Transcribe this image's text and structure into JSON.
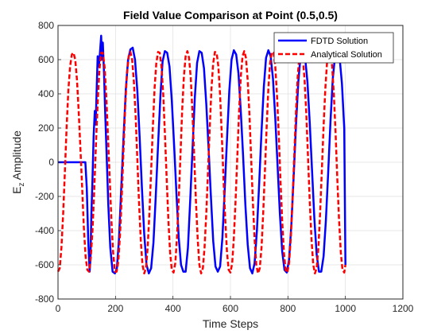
{
  "chart_data": {
    "type": "line",
    "title": "Field Value Comparison at Point (0.5,0.5)",
    "xlabel": "Time Steps",
    "ylabel_main": "E",
    "ylabel_sub": "z",
    "ylabel_rest": " Amplitude",
    "xlim": [
      0,
      1200
    ],
    "ylim": [
      -800,
      800
    ],
    "xticks": [
      "0",
      "200",
      "400",
      "600",
      "800",
      "1000",
      "1200"
    ],
    "yticks": [
      "-800",
      "-600",
      "-400",
      "-200",
      "0",
      "200",
      "400",
      "600",
      "800"
    ],
    "grid": true,
    "legend_position": "top-right",
    "series": [
      {
        "name": "FDTD Solution",
        "color": "#0000ff",
        "style": "solid",
        "points": [
          [
            0,
            0
          ],
          [
            95,
            0
          ],
          [
            100,
            -150
          ],
          [
            105,
            -450
          ],
          [
            110,
            -640
          ],
          [
            113,
            -560
          ],
          [
            116,
            -300
          ],
          [
            120,
            -100
          ],
          [
            124,
            150
          ],
          [
            128,
            300
          ],
          [
            131,
            220
          ],
          [
            134,
            400
          ],
          [
            138,
            620
          ],
          [
            142,
            560
          ],
          [
            146,
            640
          ],
          [
            150,
            740
          ],
          [
            153,
            600
          ],
          [
            156,
            700
          ],
          [
            160,
            520
          ],
          [
            164,
            300
          ],
          [
            170,
            0
          ],
          [
            175,
            -250
          ],
          [
            182,
            -500
          ],
          [
            190,
            -640
          ],
          [
            198,
            -650
          ],
          [
            205,
            -620
          ],
          [
            212,
            -450
          ],
          [
            220,
            -150
          ],
          [
            228,
            150
          ],
          [
            236,
            430
          ],
          [
            244,
            600
          ],
          [
            252,
            660
          ],
          [
            260,
            670
          ],
          [
            268,
            600
          ],
          [
            276,
            420
          ],
          [
            284,
            150
          ],
          [
            292,
            -150
          ],
          [
            300,
            -420
          ],
          [
            308,
            -600
          ],
          [
            316,
            -650
          ],
          [
            324,
            -620
          ],
          [
            332,
            -470
          ],
          [
            340,
            -200
          ],
          [
            348,
            100
          ],
          [
            356,
            380
          ],
          [
            364,
            590
          ],
          [
            372,
            650
          ],
          [
            380,
            640
          ],
          [
            388,
            560
          ],
          [
            396,
            360
          ],
          [
            404,
            100
          ],
          [
            412,
            -180
          ],
          [
            420,
            -440
          ],
          [
            428,
            -600
          ],
          [
            436,
            -640
          ],
          [
            444,
            -640
          ],
          [
            452,
            -500
          ],
          [
            460,
            -220
          ],
          [
            468,
            80
          ],
          [
            476,
            380
          ],
          [
            484,
            580
          ],
          [
            492,
            650
          ],
          [
            500,
            640
          ],
          [
            508,
            550
          ],
          [
            516,
            340
          ],
          [
            524,
            80
          ],
          [
            532,
            -200
          ],
          [
            540,
            -460
          ],
          [
            548,
            -610
          ],
          [
            556,
            -640
          ],
          [
            564,
            -610
          ],
          [
            572,
            -440
          ],
          [
            580,
            -160
          ],
          [
            588,
            140
          ],
          [
            596,
            420
          ],
          [
            604,
            600
          ],
          [
            612,
            655
          ],
          [
            620,
            630
          ],
          [
            628,
            520
          ],
          [
            636,
            300
          ],
          [
            644,
            40
          ],
          [
            652,
            -250
          ],
          [
            660,
            -480
          ],
          [
            668,
            -620
          ],
          [
            676,
            -650
          ],
          [
            684,
            -590
          ],
          [
            692,
            -400
          ],
          [
            700,
            -120
          ],
          [
            708,
            180
          ],
          [
            716,
            440
          ],
          [
            724,
            610
          ],
          [
            732,
            655
          ],
          [
            740,
            620
          ],
          [
            748,
            490
          ],
          [
            756,
            260
          ],
          [
            764,
            -20
          ],
          [
            772,
            -300
          ],
          [
            780,
            -520
          ],
          [
            788,
            -630
          ],
          [
            796,
            -645
          ],
          [
            804,
            -570
          ],
          [
            812,
            -360
          ],
          [
            820,
            -80
          ],
          [
            828,
            220
          ],
          [
            836,
            470
          ],
          [
            844,
            620
          ],
          [
            852,
            655
          ],
          [
            860,
            610
          ],
          [
            868,
            470
          ],
          [
            876,
            230
          ],
          [
            884,
            -50
          ],
          [
            892,
            -330
          ],
          [
            900,
            -540
          ],
          [
            908,
            -640
          ],
          [
            916,
            -640
          ],
          [
            924,
            -550
          ],
          [
            932,
            -340
          ],
          [
            940,
            -60
          ],
          [
            948,
            240
          ],
          [
            956,
            490
          ],
          [
            964,
            620
          ],
          [
            972,
            655
          ],
          [
            980,
            610
          ],
          [
            988,
            460
          ],
          [
            996,
            200
          ],
          [
            1000,
            -600
          ]
        ]
      },
      {
        "name": "Analytical Solution",
        "color": "#ff0000",
        "style": "dashed",
        "points": [
          [
            0,
            -640
          ],
          [
            6,
            -620
          ],
          [
            12,
            -500
          ],
          [
            18,
            -300
          ],
          [
            24,
            -50
          ],
          [
            30,
            200
          ],
          [
            36,
            420
          ],
          [
            42,
            560
          ],
          [
            48,
            630
          ],
          [
            54,
            640
          ],
          [
            60,
            600
          ],
          [
            66,
            480
          ],
          [
            72,
            300
          ],
          [
            78,
            80
          ],
          [
            84,
            -150
          ],
          [
            90,
            -380
          ],
          [
            96,
            -550
          ],
          [
            102,
            -630
          ],
          [
            108,
            -640
          ],
          [
            114,
            -560
          ],
          [
            120,
            -400
          ],
          [
            126,
            -160
          ],
          [
            132,
            100
          ],
          [
            138,
            350
          ],
          [
            144,
            540
          ],
          [
            150,
            640
          ],
          [
            156,
            640
          ],
          [
            162,
            560
          ],
          [
            168,
            380
          ],
          [
            174,
            150
          ],
          [
            180,
            -100
          ],
          [
            186,
            -350
          ],
          [
            192,
            -530
          ],
          [
            198,
            -640
          ],
          [
            204,
            -640
          ],
          [
            210,
            -580
          ],
          [
            216,
            -420
          ],
          [
            222,
            -190
          ],
          [
            228,
            80
          ],
          [
            234,
            330
          ],
          [
            240,
            520
          ],
          [
            246,
            620
          ],
          [
            252,
            645
          ],
          [
            258,
            600
          ],
          [
            264,
            470
          ],
          [
            270,
            270
          ],
          [
            276,
            20
          ],
          [
            282,
            -240
          ],
          [
            288,
            -460
          ],
          [
            294,
            -600
          ],
          [
            300,
            -650
          ],
          [
            306,
            -620
          ],
          [
            312,
            -500
          ],
          [
            318,
            -300
          ],
          [
            324,
            -50
          ],
          [
            330,
            210
          ],
          [
            336,
            430
          ],
          [
            342,
            580
          ],
          [
            348,
            645
          ],
          [
            354,
            640
          ],
          [
            360,
            560
          ],
          [
            366,
            400
          ],
          [
            372,
            170
          ],
          [
            378,
            -90
          ],
          [
            384,
            -340
          ],
          [
            390,
            -530
          ],
          [
            396,
            -630
          ],
          [
            402,
            -645
          ],
          [
            408,
            -590
          ],
          [
            414,
            -440
          ],
          [
            420,
            -220
          ],
          [
            426,
            40
          ],
          [
            432,
            300
          ],
          [
            438,
            500
          ],
          [
            444,
            620
          ],
          [
            450,
            650
          ],
          [
            456,
            610
          ],
          [
            462,
            490
          ],
          [
            468,
            280
          ],
          [
            474,
            30
          ],
          [
            480,
            -230
          ],
          [
            486,
            -450
          ],
          [
            492,
            -600
          ],
          [
            498,
            -650
          ],
          [
            504,
            -620
          ],
          [
            510,
            -500
          ],
          [
            516,
            -300
          ],
          [
            522,
            -50
          ],
          [
            528,
            210
          ],
          [
            534,
            430
          ],
          [
            540,
            580
          ],
          [
            546,
            645
          ],
          [
            552,
            640
          ],
          [
            558,
            560
          ],
          [
            564,
            390
          ],
          [
            570,
            160
          ],
          [
            576,
            -100
          ],
          [
            582,
            -340
          ],
          [
            588,
            -530
          ],
          [
            594,
            -630
          ],
          [
            600,
            -645
          ],
          [
            606,
            -590
          ],
          [
            612,
            -440
          ],
          [
            618,
            -220
          ],
          [
            624,
            40
          ],
          [
            630,
            300
          ],
          [
            636,
            500
          ],
          [
            642,
            620
          ],
          [
            648,
            650
          ],
          [
            654,
            610
          ],
          [
            660,
            480
          ],
          [
            666,
            280
          ],
          [
            672,
            30
          ],
          [
            678,
            -230
          ],
          [
            684,
            -450
          ],
          [
            690,
            -600
          ],
          [
            696,
            -650
          ],
          [
            702,
            -620
          ],
          [
            708,
            -500
          ],
          [
            714,
            -300
          ],
          [
            720,
            -50
          ],
          [
            726,
            210
          ],
          [
            732,
            430
          ],
          [
            738,
            580
          ],
          [
            744,
            645
          ],
          [
            750,
            640
          ],
          [
            756,
            560
          ],
          [
            762,
            390
          ],
          [
            768,
            160
          ],
          [
            774,
            -100
          ],
          [
            780,
            -340
          ],
          [
            786,
            -530
          ],
          [
            792,
            -630
          ],
          [
            798,
            -645
          ],
          [
            804,
            -590
          ],
          [
            810,
            -440
          ],
          [
            816,
            -220
          ],
          [
            822,
            40
          ],
          [
            828,
            300
          ],
          [
            834,
            500
          ],
          [
            840,
            620
          ],
          [
            846,
            650
          ],
          [
            852,
            610
          ],
          [
            858,
            480
          ],
          [
            864,
            280
          ],
          [
            870,
            30
          ],
          [
            876,
            -230
          ],
          [
            882,
            -450
          ],
          [
            888,
            -600
          ],
          [
            894,
            -650
          ],
          [
            900,
            -620
          ],
          [
            906,
            -500
          ],
          [
            912,
            -300
          ],
          [
            918,
            -50
          ],
          [
            924,
            210
          ],
          [
            930,
            430
          ],
          [
            936,
            580
          ],
          [
            942,
            645
          ],
          [
            948,
            640
          ],
          [
            954,
            560
          ],
          [
            960,
            390
          ],
          [
            966,
            160
          ],
          [
            972,
            -100
          ],
          [
            978,
            -340
          ],
          [
            984,
            -530
          ],
          [
            990,
            -630
          ],
          [
            996,
            -645
          ],
          [
            1000,
            -600
          ]
        ]
      }
    ]
  }
}
